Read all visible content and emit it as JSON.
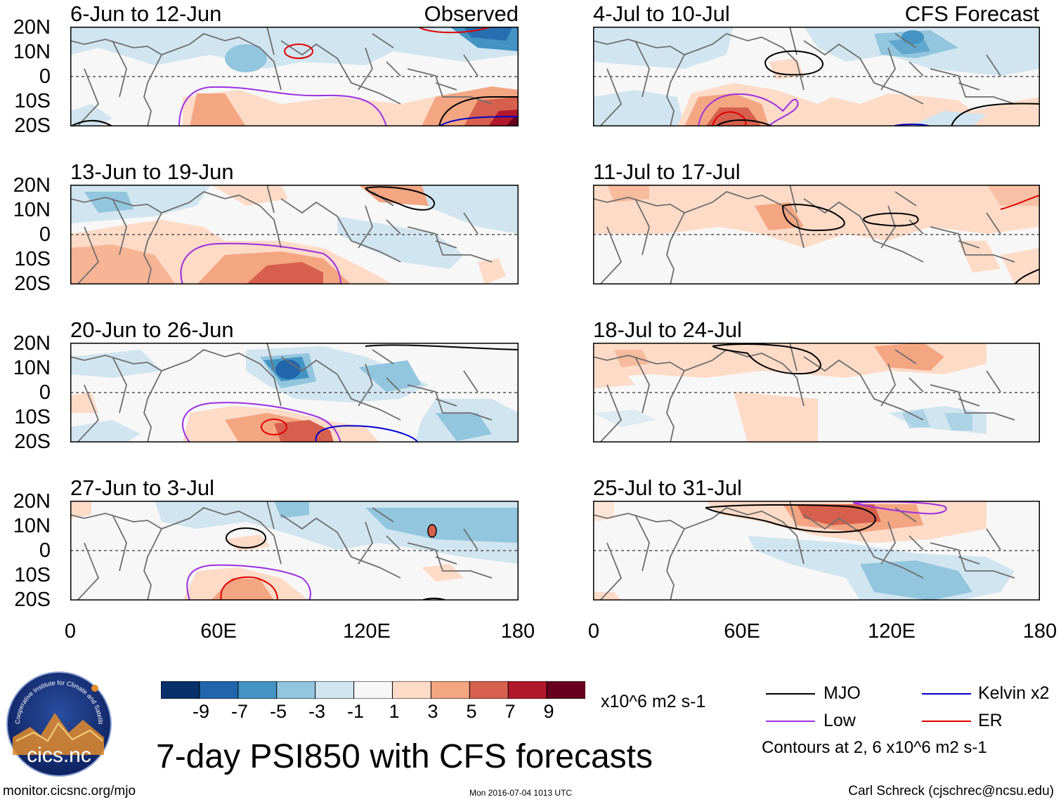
{
  "panels_left": [
    {
      "title": "6-Jun to 12-Jun",
      "tag": "Observed"
    },
    {
      "title": "13-Jun to 19-Jun",
      "tag": ""
    },
    {
      "title": "20-Jun to 26-Jun",
      "tag": ""
    },
    {
      "title": "27-Jun to 3-Jul",
      "tag": ""
    }
  ],
  "panels_right": [
    {
      "title": "4-Jul to 10-Jul",
      "tag": "CFS Forecast"
    },
    {
      "title": "11-Jul to 17-Jul",
      "tag": ""
    },
    {
      "title": "18-Jul to 24-Jul",
      "tag": ""
    },
    {
      "title": "25-Jul to 31-Jul",
      "tag": ""
    }
  ],
  "lat_labels": [
    "20N",
    "10N",
    "0",
    "10S",
    "20S"
  ],
  "lon_labels": [
    "0",
    "60E",
    "120E",
    "180"
  ],
  "colorbar": {
    "colors": [
      "#08306b",
      "#2166ac",
      "#4393c3",
      "#92c5de",
      "#d1e5f0",
      "#f7f7f7",
      "#fddbc7",
      "#f4a582",
      "#d6604d",
      "#b2182b",
      "#67001f"
    ],
    "labels": [
      "-9",
      "-7",
      "-5",
      "-3",
      "-1",
      "1",
      "3",
      "5",
      "7",
      "9"
    ],
    "units": "x10^6 m2 s-1"
  },
  "legend": {
    "items": [
      {
        "label": "MJO",
        "color": "#000000"
      },
      {
        "label": "Kelvin x2",
        "color": "#0000cc"
      },
      {
        "label": "Low",
        "color": "#9a2fe0"
      },
      {
        "label": "ER",
        "color": "#e00000"
      }
    ],
    "note": "Contours at 2, 6 x10^6 m2 s-1"
  },
  "main_title": "7-day PSI850 with CFS forecasts",
  "footer": {
    "url": "monitor.cicsnc.org/mjo",
    "timestamp": "Mon 2016-07-04 1013 UTC",
    "author": "Carl Schreck (cjschrec@ncsu.edu)"
  },
  "logo": {
    "text": "cics.nc",
    "ring_text": "Cooperative Institute for Climate and Satellites"
  }
}
